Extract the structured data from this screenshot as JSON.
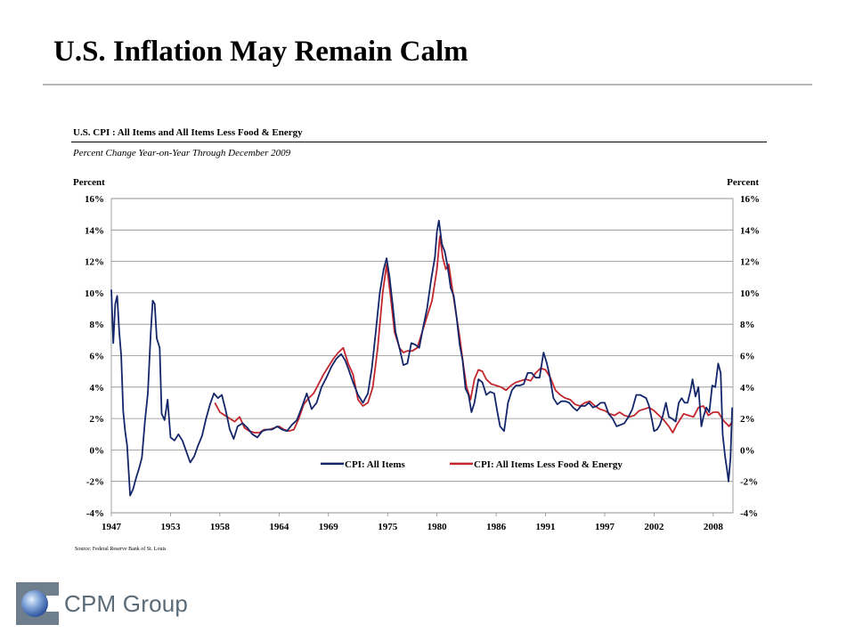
{
  "slide_title": "U.S. Inflation May Remain Calm",
  "source": "Source: Federal Reserve Bank of St. Louis",
  "logo": {
    "text": "CPM Group",
    "icon": "globe-icon"
  },
  "chart_data": {
    "type": "line",
    "title": "U.S. CPI : All Items and All Items Less Food & Energy",
    "subtitle": "Percent Change Year-on-Year Through December 2009",
    "ylabel_left": "Percent",
    "ylabel_right": "Percent",
    "xlim": [
      1947,
      2010
    ],
    "ylim": [
      -4,
      16
    ],
    "yticks": [
      "16%",
      "14%",
      "12%",
      "10%",
      "8%",
      "6%",
      "4%",
      "2%",
      "0%",
      "-2%",
      "-4%"
    ],
    "ytick_values": [
      16,
      14,
      12,
      10,
      8,
      6,
      4,
      2,
      0,
      -2,
      -4
    ],
    "xticks": [
      "1947",
      "1953",
      "1958",
      "1964",
      "1969",
      "1975",
      "1980",
      "1986",
      "1991",
      "1997",
      "2002",
      "2008"
    ],
    "xtick_values": [
      1947,
      1953,
      1958,
      1964,
      1969,
      1975,
      1980,
      1986,
      1991,
      1997,
      2002,
      2008
    ],
    "grid": true,
    "legend": "bottom-center",
    "series": [
      {
        "name": "CPI: All Items",
        "color": "#13266a",
        "points": [
          [
            1947.0,
            10.2
          ],
          [
            1947.2,
            6.8
          ],
          [
            1947.4,
            9.3
          ],
          [
            1947.6,
            9.8
          ],
          [
            1947.8,
            7.5
          ],
          [
            1948.0,
            6.0
          ],
          [
            1948.2,
            2.5
          ],
          [
            1948.4,
            1.2
          ],
          [
            1948.6,
            0.3
          ],
          [
            1948.9,
            -2.9
          ],
          [
            1949.2,
            -2.5
          ],
          [
            1949.5,
            -1.8
          ],
          [
            1949.8,
            -1.2
          ],
          [
            1950.1,
            -0.5
          ],
          [
            1950.4,
            1.8
          ],
          [
            1950.7,
            3.6
          ],
          [
            1951.0,
            7.5
          ],
          [
            1951.2,
            9.5
          ],
          [
            1951.4,
            9.3
          ],
          [
            1951.6,
            7.1
          ],
          [
            1951.9,
            6.5
          ],
          [
            1952.1,
            2.3
          ],
          [
            1952.4,
            1.9
          ],
          [
            1952.7,
            3.2
          ],
          [
            1953.0,
            0.8
          ],
          [
            1953.4,
            0.6
          ],
          [
            1953.8,
            1.0
          ],
          [
            1954.2,
            0.6
          ],
          [
            1954.6,
            -0.1
          ],
          [
            1955.0,
            -0.8
          ],
          [
            1955.4,
            -0.4
          ],
          [
            1955.8,
            0.3
          ],
          [
            1956.2,
            0.9
          ],
          [
            1956.6,
            2.0
          ],
          [
            1957.0,
            2.9
          ],
          [
            1957.4,
            3.6
          ],
          [
            1957.8,
            3.3
          ],
          [
            1958.2,
            3.5
          ],
          [
            1958.6,
            2.5
          ],
          [
            1959.0,
            1.3
          ],
          [
            1959.4,
            0.7
          ],
          [
            1959.8,
            1.5
          ],
          [
            1960.3,
            1.7
          ],
          [
            1960.8,
            1.4
          ],
          [
            1961.3,
            1.0
          ],
          [
            1961.8,
            0.8
          ],
          [
            1962.3,
            1.2
          ],
          [
            1962.8,
            1.3
          ],
          [
            1963.3,
            1.3
          ],
          [
            1963.8,
            1.5
          ],
          [
            1964.3,
            1.3
          ],
          [
            1964.8,
            1.2
          ],
          [
            1965.3,
            1.6
          ],
          [
            1965.8,
            1.9
          ],
          [
            1966.3,
            2.7
          ],
          [
            1966.8,
            3.6
          ],
          [
            1967.3,
            2.6
          ],
          [
            1967.8,
            3.0
          ],
          [
            1968.3,
            4.0
          ],
          [
            1968.8,
            4.6
          ],
          [
            1969.3,
            5.3
          ],
          [
            1969.8,
            5.8
          ],
          [
            1970.3,
            6.1
          ],
          [
            1970.7,
            5.7
          ],
          [
            1971.0,
            5.2
          ],
          [
            1971.5,
            4.3
          ],
          [
            1972.0,
            3.5
          ],
          [
            1972.5,
            3.0
          ],
          [
            1973.0,
            3.6
          ],
          [
            1973.4,
            5.2
          ],
          [
            1973.8,
            7.5
          ],
          [
            1974.2,
            10.0
          ],
          [
            1974.6,
            11.5
          ],
          [
            1974.9,
            12.2
          ],
          [
            1975.2,
            11.0
          ],
          [
            1975.5,
            9.3
          ],
          [
            1975.8,
            7.5
          ],
          [
            1976.2,
            6.5
          ],
          [
            1976.6,
            5.4
          ],
          [
            1977.0,
            5.5
          ],
          [
            1977.4,
            6.8
          ],
          [
            1977.8,
            6.7
          ],
          [
            1978.2,
            6.5
          ],
          [
            1978.6,
            7.8
          ],
          [
            1979.0,
            9.0
          ],
          [
            1979.4,
            10.8
          ],
          [
            1979.8,
            12.3
          ],
          [
            1980.0,
            13.9
          ],
          [
            1980.2,
            14.6
          ],
          [
            1980.5,
            13.1
          ],
          [
            1980.8,
            12.6
          ],
          [
            1981.1,
            11.6
          ],
          [
            1981.4,
            10.3
          ],
          [
            1981.7,
            9.8
          ],
          [
            1982.0,
            8.4
          ],
          [
            1982.3,
            6.7
          ],
          [
            1982.6,
            5.7
          ],
          [
            1982.9,
            3.9
          ],
          [
            1983.2,
            3.5
          ],
          [
            1983.5,
            2.4
          ],
          [
            1983.8,
            3.0
          ],
          [
            1984.2,
            4.5
          ],
          [
            1984.6,
            4.3
          ],
          [
            1985.0,
            3.5
          ],
          [
            1985.4,
            3.7
          ],
          [
            1985.8,
            3.6
          ],
          [
            1986.1,
            2.5
          ],
          [
            1986.4,
            1.5
          ],
          [
            1986.8,
            1.2
          ],
          [
            1987.2,
            3.0
          ],
          [
            1987.6,
            3.8
          ],
          [
            1988.0,
            4.1
          ],
          [
            1988.4,
            4.1
          ],
          [
            1988.8,
            4.2
          ],
          [
            1989.2,
            4.9
          ],
          [
            1989.6,
            4.9
          ],
          [
            1990.0,
            4.6
          ],
          [
            1990.4,
            4.6
          ],
          [
            1990.8,
            6.2
          ],
          [
            1991.1,
            5.6
          ],
          [
            1991.4,
            4.8
          ],
          [
            1991.8,
            3.3
          ],
          [
            1992.2,
            2.9
          ],
          [
            1992.6,
            3.1
          ],
          [
            1993.0,
            3.1
          ],
          [
            1993.4,
            3.0
          ],
          [
            1993.8,
            2.7
          ],
          [
            1994.2,
            2.5
          ],
          [
            1994.6,
            2.8
          ],
          [
            1995.0,
            2.8
          ],
          [
            1995.4,
            3.0
          ],
          [
            1995.8,
            2.7
          ],
          [
            1996.2,
            2.8
          ],
          [
            1996.6,
            3.0
          ],
          [
            1997.0,
            3.0
          ],
          [
            1997.4,
            2.3
          ],
          [
            1997.8,
            2.0
          ],
          [
            1998.2,
            1.5
          ],
          [
            1998.6,
            1.6
          ],
          [
            1999.0,
            1.7
          ],
          [
            1999.4,
            2.1
          ],
          [
            1999.8,
            2.6
          ],
          [
            2000.2,
            3.5
          ],
          [
            2000.6,
            3.5
          ],
          [
            2000.9,
            3.4
          ],
          [
            2001.2,
            3.3
          ],
          [
            2001.5,
            2.8
          ],
          [
            2001.8,
            1.9
          ],
          [
            2002.0,
            1.2
          ],
          [
            2002.3,
            1.3
          ],
          [
            2002.6,
            1.6
          ],
          [
            2002.9,
            2.2
          ],
          [
            2003.2,
            3.0
          ],
          [
            2003.5,
            2.1
          ],
          [
            2003.8,
            2.0
          ],
          [
            2004.2,
            1.8
          ],
          [
            2004.5,
            3.0
          ],
          [
            2004.8,
            3.3
          ],
          [
            2005.1,
            3.0
          ],
          [
            2005.4,
            3.0
          ],
          [
            2005.7,
            3.8
          ],
          [
            2005.9,
            4.5
          ],
          [
            2006.2,
            3.4
          ],
          [
            2006.5,
            4.0
          ],
          [
            2006.8,
            1.5
          ],
          [
            2007.0,
            2.1
          ],
          [
            2007.3,
            2.7
          ],
          [
            2007.6,
            2.4
          ],
          [
            2007.9,
            4.1
          ],
          [
            2008.2,
            4.0
          ],
          [
            2008.5,
            5.5
          ],
          [
            2008.75,
            4.9
          ],
          [
            2008.95,
            1.0
          ],
          [
            2009.2,
            -0.4
          ],
          [
            2009.4,
            -1.3
          ],
          [
            2009.55,
            -2.0
          ],
          [
            2009.75,
            -0.5
          ],
          [
            2009.92,
            2.7
          ]
        ]
      },
      {
        "name": "CPI: All Items Less Food & Energy",
        "color": "#c1272d",
        "points": [
          [
            1957.5,
            3.0
          ],
          [
            1958.0,
            2.4
          ],
          [
            1958.5,
            2.2
          ],
          [
            1959.0,
            2.0
          ],
          [
            1959.5,
            1.8
          ],
          [
            1960.0,
            2.1
          ],
          [
            1960.5,
            1.4
          ],
          [
            1961.0,
            1.2
          ],
          [
            1961.5,
            1.1
          ],
          [
            1962.0,
            1.1
          ],
          [
            1962.5,
            1.3
          ],
          [
            1963.0,
            1.3
          ],
          [
            1963.5,
            1.4
          ],
          [
            1964.0,
            1.5
          ],
          [
            1964.5,
            1.3
          ],
          [
            1965.0,
            1.2
          ],
          [
            1965.5,
            1.3
          ],
          [
            1966.0,
            2.0
          ],
          [
            1966.5,
            2.9
          ],
          [
            1967.0,
            3.3
          ],
          [
            1967.5,
            3.6
          ],
          [
            1968.0,
            4.2
          ],
          [
            1968.5,
            4.8
          ],
          [
            1969.0,
            5.3
          ],
          [
            1969.5,
            5.8
          ],
          [
            1970.0,
            6.2
          ],
          [
            1970.5,
            6.5
          ],
          [
            1971.0,
            5.5
          ],
          [
            1971.5,
            4.8
          ],
          [
            1972.0,
            3.2
          ],
          [
            1972.5,
            2.8
          ],
          [
            1973.0,
            3.0
          ],
          [
            1973.5,
            4.0
          ],
          [
            1974.0,
            6.5
          ],
          [
            1974.5,
            10.0
          ],
          [
            1974.9,
            11.8
          ],
          [
            1975.3,
            9.8
          ],
          [
            1975.7,
            7.5
          ],
          [
            1976.2,
            6.5
          ],
          [
            1976.6,
            6.2
          ],
          [
            1977.0,
            6.3
          ],
          [
            1977.5,
            6.3
          ],
          [
            1978.0,
            6.5
          ],
          [
            1978.5,
            7.5
          ],
          [
            1979.0,
            8.5
          ],
          [
            1979.5,
            9.5
          ],
          [
            1980.0,
            11.5
          ],
          [
            1980.3,
            13.6
          ],
          [
            1980.6,
            12.2
          ],
          [
            1980.9,
            11.5
          ],
          [
            1981.2,
            11.8
          ],
          [
            1981.5,
            10.5
          ],
          [
            1981.9,
            8.8
          ],
          [
            1982.3,
            7.2
          ],
          [
            1982.7,
            5.3
          ],
          [
            1983.0,
            4.0
          ],
          [
            1983.4,
            3.2
          ],
          [
            1983.8,
            4.5
          ],
          [
            1984.2,
            5.1
          ],
          [
            1984.6,
            5.0
          ],
          [
            1985.0,
            4.5
          ],
          [
            1985.5,
            4.2
          ],
          [
            1986.0,
            4.1
          ],
          [
            1986.5,
            4.0
          ],
          [
            1987.0,
            3.8
          ],
          [
            1987.5,
            4.1
          ],
          [
            1988.0,
            4.3
          ],
          [
            1988.5,
            4.4
          ],
          [
            1989.0,
            4.5
          ],
          [
            1989.5,
            4.4
          ],
          [
            1990.0,
            4.9
          ],
          [
            1990.5,
            5.2
          ],
          [
            1991.0,
            5.1
          ],
          [
            1991.5,
            4.6
          ],
          [
            1992.0,
            3.8
          ],
          [
            1992.5,
            3.5
          ],
          [
            1993.0,
            3.3
          ],
          [
            1993.5,
            3.2
          ],
          [
            1994.0,
            2.9
          ],
          [
            1994.5,
            2.8
          ],
          [
            1995.0,
            3.0
          ],
          [
            1995.5,
            3.1
          ],
          [
            1996.0,
            2.8
          ],
          [
            1996.5,
            2.6
          ],
          [
            1997.0,
            2.5
          ],
          [
            1997.5,
            2.3
          ],
          [
            1998.0,
            2.2
          ],
          [
            1998.5,
            2.4
          ],
          [
            1999.0,
            2.2
          ],
          [
            1999.5,
            2.1
          ],
          [
            2000.0,
            2.2
          ],
          [
            2000.5,
            2.5
          ],
          [
            2001.0,
            2.6
          ],
          [
            2001.5,
            2.7
          ],
          [
            2002.0,
            2.5
          ],
          [
            2002.5,
            2.2
          ],
          [
            2003.0,
            1.9
          ],
          [
            2003.5,
            1.5
          ],
          [
            2003.9,
            1.1
          ],
          [
            2004.3,
            1.6
          ],
          [
            2004.7,
            2.0
          ],
          [
            2005.0,
            2.3
          ],
          [
            2005.5,
            2.2
          ],
          [
            2006.0,
            2.1
          ],
          [
            2006.5,
            2.7
          ],
          [
            2007.0,
            2.8
          ],
          [
            2007.5,
            2.2
          ],
          [
            2008.0,
            2.4
          ],
          [
            2008.5,
            2.4
          ],
          [
            2009.0,
            1.9
          ],
          [
            2009.3,
            1.7
          ],
          [
            2009.6,
            1.5
          ],
          [
            2009.92,
            1.8
          ]
        ]
      }
    ]
  }
}
